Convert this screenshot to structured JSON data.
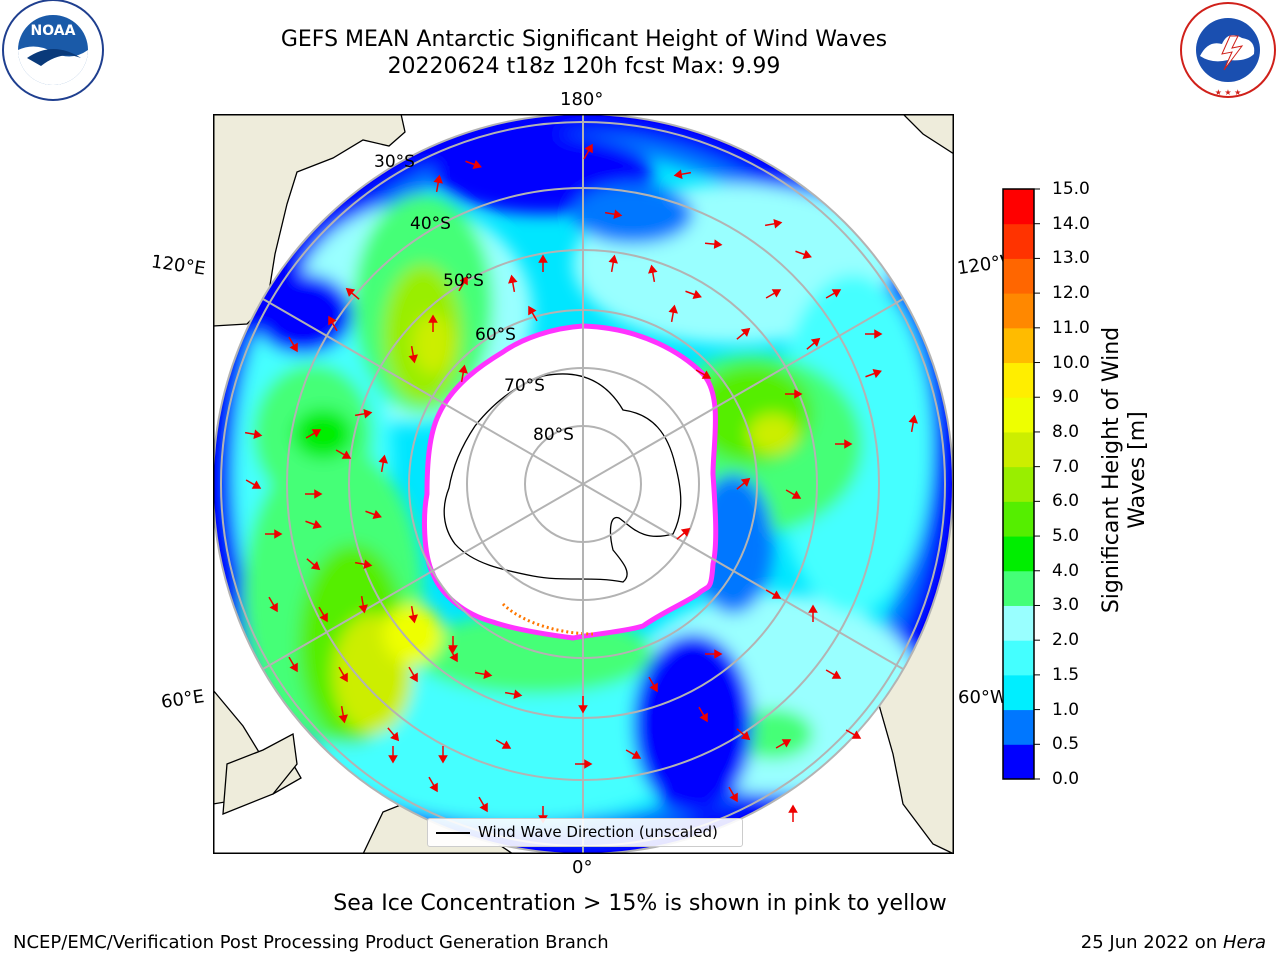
{
  "header": {
    "title_line1": "GEFS MEAN Antarctic Significant Height of Wind Waves",
    "title_line2": "20220624 t18z 120h fcst   Max: 9.99"
  },
  "logos": {
    "left": "NOAA",
    "left_ring": "NATIONAL OCEANIC AND ATMOSPHERIC ADMINISTRATION · U.S. DEPARTMENT OF COMMERCE",
    "right_ring": "NATIONAL WEATHER SERVICE"
  },
  "map": {
    "projection": "south-polar stereographic",
    "longitude_labels": [
      "180°",
      "120°E",
      "120°W",
      "60°E",
      "60°W",
      "0°"
    ],
    "latitude_labels": [
      "30°S",
      "40°S",
      "50°S",
      "60°S",
      "70°S",
      "80°S"
    ],
    "legend_label": "Wind Wave Direction (unscaled)",
    "colors": {
      "land": "#eeecdb",
      "sea_ice_mask": "#ffffff",
      "sea_ice_edge": "#ff33ff",
      "graticule": "#b3b3b3",
      "arrows": "#ee0000"
    }
  },
  "colorbar": {
    "title": "Significant Height of Wind Waves [m]",
    "tick_labels": [
      "0.0",
      "0.5",
      "1.0",
      "1.5",
      "2.0",
      "3.0",
      "4.0",
      "5.0",
      "6.0",
      "7.0",
      "8.0",
      "9.0",
      "10.0",
      "11.0",
      "12.0",
      "13.0",
      "14.0",
      "15.0"
    ],
    "colors": [
      "#0000ff",
      "#0077ff",
      "#00eeff",
      "#44ffff",
      "#99ffff",
      "#44ff77",
      "#00ee00",
      "#55ee00",
      "#99ee00",
      "#ccee00",
      "#eeff00",
      "#ffee00",
      "#ffbb00",
      "#ff8800",
      "#ff6600",
      "#ff3300",
      "#ff0000"
    ]
  },
  "footer": {
    "note": "Sea Ice Concentration > 15% is shown in pink to yellow",
    "left": "NCEP/EMC/Verification Post Processing Product Generation Branch",
    "right_prefix": "25 Jun 2022 on ",
    "right_host": "Hera"
  }
}
